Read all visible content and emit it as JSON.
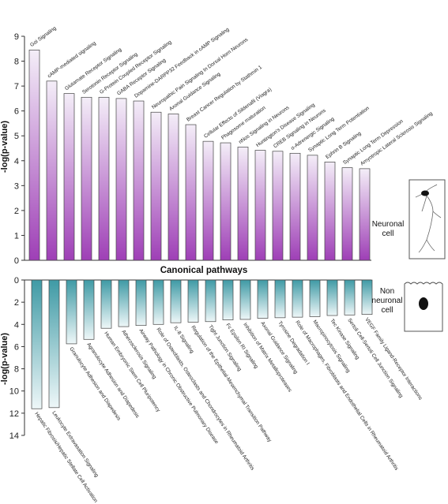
{
  "chart_data": [
    {
      "type": "bar",
      "categories": [
        "Gαi Signaling",
        "cAMP-mediated signaling",
        "Glutamate Receptor Signaling",
        "Serotonin Receptor Signaling",
        "G-Protein Coupled Receptor Signaling",
        "GABA Receptor Signaling",
        "Dopamine-DARPP32 Feedback in cAMP Signaling",
        "Neuropathic Pain Signaling In Dorsal Horn Neurons",
        "Axonal Guidance Signaling",
        "Breast Cancer Regulation by Stathmin 1",
        "Cellular Effects of Sildenafil (Viagra)",
        "Phagosome maturation",
        "nNos Signaling in Neurons",
        "Huntington's Disease Signaling",
        "CREB Signaling in Neurons",
        "α-Adrenergic Signaling",
        "Synaptic Long Term Potentiation",
        "Ephrin B Signaling",
        "Synaptic Long Term Depression",
        "Amyotropic Lateral Sclerosis Signaling"
      ],
      "values": [
        8.45,
        7.2,
        6.7,
        6.55,
        6.55,
        6.5,
        6.4,
        5.95,
        5.88,
        5.45,
        4.78,
        4.72,
        4.55,
        4.42,
        4.38,
        4.3,
        4.22,
        3.95,
        3.72,
        3.68
      ],
      "ylabel": "-log(p-value)",
      "ylim": [
        0,
        9
      ],
      "yticks": [
        "0",
        "1",
        "2",
        "3",
        "4",
        "5",
        "6",
        "7",
        "8",
        "9"
      ],
      "color_top": "#f4eef8",
      "color_bottom": "#9e3fb6"
    },
    {
      "type": "bar",
      "categories": [
        "Hepatic Fibrosis/Hepatic Stellate Cell Activation",
        "Leukocyte Extravasation Signaling",
        "Granulocyte Adhesion and Diapedesis",
        "Agranulocyte Adhesion and Diapedesis",
        "Human Embryonic Stem Cell Pluripotency",
        "Atherosclerosis Signaling",
        "Airway Pathology in Chronic Obstructive Pulmonary Disease",
        "Role of Osteoblasts, Osteoclasts and Chondrocytes in Rheumatoid Arthritis",
        "IL-8 Signaling",
        "Regulation of the Epithelial-Mesenchymal Transition Pathway",
        "Tight Junction Signaling",
        "Fc Epsilon RI Signaling",
        "Inhibition of Matrix Metalloproteases",
        "Axonal Guidance Signaling",
        "Tyrosine Degradation I",
        "Role of Macrophages, Fibroblasts and Endothelial Cells in Rheumatoid Arthritis",
        "Macropinocytosis Signaling",
        "Tec Kinase Signaling",
        "Sertoli Cell-Sertoli Cell Junction Signaling",
        "VEGF Family Ligand-Receptor Interactions"
      ],
      "values": [
        11.6,
        11.5,
        5.75,
        5.35,
        4.35,
        4.2,
        4.1,
        4.0,
        3.85,
        3.8,
        3.75,
        3.6,
        3.55,
        3.45,
        3.4,
        3.35,
        3.3,
        3.2,
        3.15,
        3.1
      ],
      "ylabel": "-log(p-value)",
      "ylim": [
        0,
        14
      ],
      "yticks": [
        "0",
        "2",
        "4",
        "6",
        "8",
        "10",
        "12",
        "14"
      ],
      "inverted": true,
      "color_top": "#3f9aa5",
      "color_bottom": "#eef7f8"
    }
  ],
  "labels": {
    "middle_title": "Canonical pathways",
    "neuronal": [
      "Neuronal",
      "cell"
    ],
    "non_neuronal": [
      "Non",
      "neuronal",
      "cell"
    ]
  },
  "colors": {
    "axis": "#333333",
    "bar_outline": "#444444"
  }
}
